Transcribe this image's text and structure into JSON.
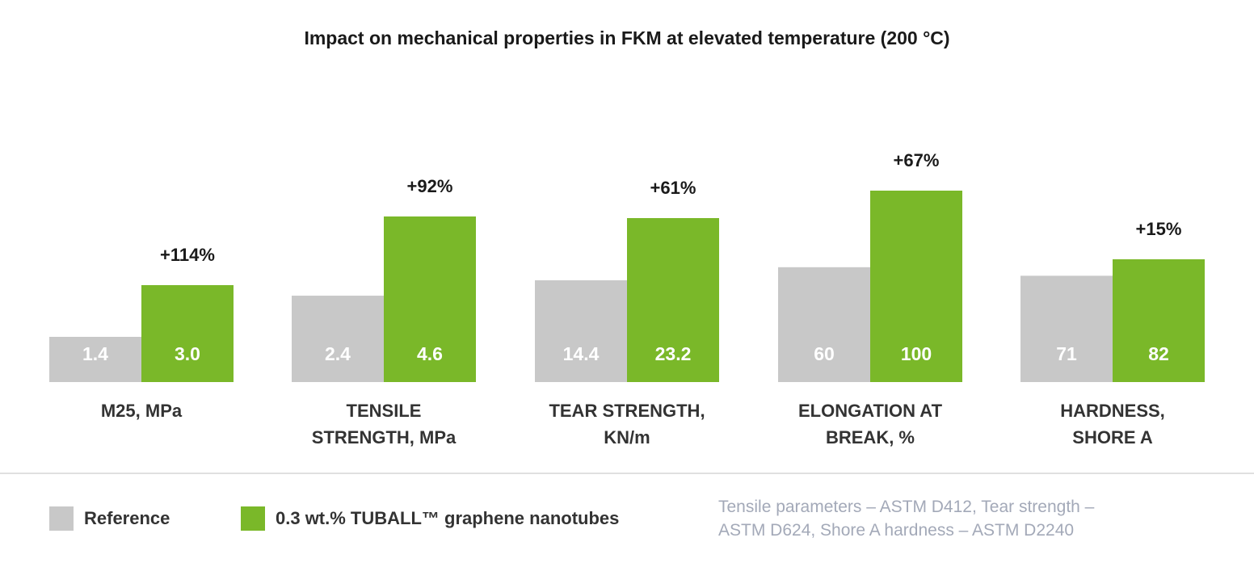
{
  "chart_data": {
    "type": "bar",
    "title": "Impact on mechanical properties in FKM at elevated temperature (200 °C)",
    "categories": [
      [
        "M25, MPa"
      ],
      [
        "TENSILE",
        "STRENGTH, MPa"
      ],
      [
        "TEAR STRENGTH,",
        "KN/m"
      ],
      [
        "ELONGATION AT",
        "BREAK, %"
      ],
      [
        "HARDNESS,",
        "SHORE A"
      ]
    ],
    "series": [
      {
        "name": "Reference",
        "color": "#c8c8c8",
        "values": [
          1.4,
          2.4,
          14.4,
          60,
          71
        ],
        "labels": [
          "1.4",
          "2.4",
          "14.4",
          "60",
          "71"
        ]
      },
      {
        "name": "0.3 wt.% TUBALL™  graphene nanotubes",
        "color": "#7ab829",
        "values": [
          3.0,
          4.6,
          23.2,
          100,
          82
        ],
        "labels": [
          "3.0",
          "4.6",
          "23.2",
          "100",
          "82"
        ]
      }
    ],
    "improvements": [
      "+114%",
      "+92%",
      "+61%",
      "+67%",
      "+15%"
    ],
    "legend_position": "bottom-left",
    "grid": false
  },
  "footnote": {
    "line1": "Tensile parameters – ASTM D412, Tear strength –",
    "line2": "ASTM D624, Shore A hardness – ASTM D2240"
  }
}
